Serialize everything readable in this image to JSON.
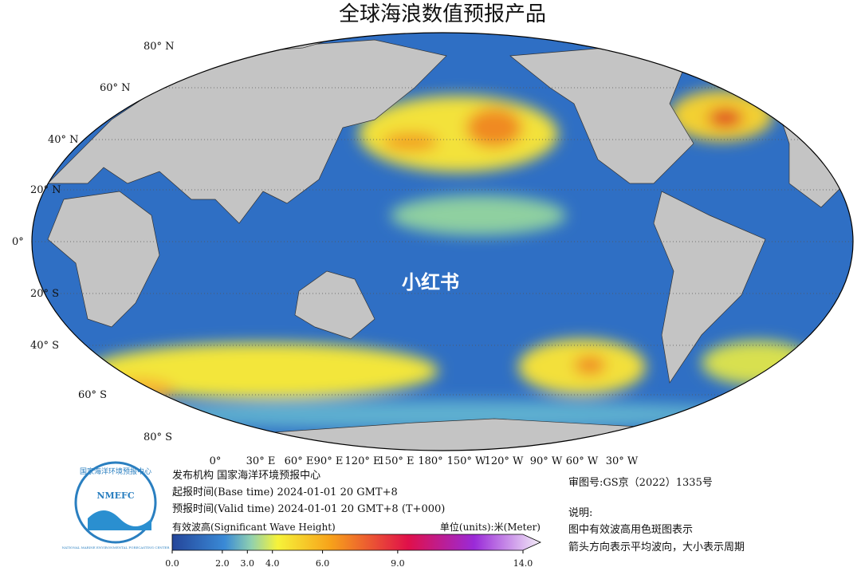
{
  "title": "全球海浪数值预报产品",
  "lat_labels": [
    "80° N",
    "60° N",
    "40° N",
    "20° N",
    "0°",
    "20° S",
    "40° S",
    "60° S",
    "80° S"
  ],
  "lon_labels": [
    "0°",
    "30° E",
    "60° E",
    "90° E",
    "120° E",
    "150° E",
    "180°",
    "150° W",
    "120° W",
    "90° W",
    "60° W",
    "30° W"
  ],
  "watermark": "小红书",
  "logo": {
    "cn": "国家海洋环境预报中心",
    "abbr": "NMEFC",
    "en": "NATIONAL MARINE ENVIRONMENTAL FORECASTING CENTER"
  },
  "info": {
    "agency": "发布机构 国家海洋环境预报中心",
    "base_time": "起报时间(Base time)  2024-01-01 20  GMT+8",
    "valid_time": "预报时间(Valid time) 2024-01-01 20  GMT+8 (T+000)",
    "approval": "审图号:GS京（2022）1335号",
    "notes_title": "说明:",
    "notes": [
      "图中有效波高用色斑图表示",
      "箭头方向表示平均波向，大小表示周期"
    ]
  },
  "colorbar": {
    "label": "有效波高(Significant Wave Height)",
    "units": "单位(units):米(Meter)",
    "range": [
      0,
      14
    ],
    "ticks": [
      {
        "value": 0,
        "label": "0.0"
      },
      {
        "value": 2,
        "label": "2.0"
      },
      {
        "value": 3,
        "label": "3.0"
      },
      {
        "value": 4,
        "label": "4.0"
      },
      {
        "value": 6,
        "label": "6.0"
      },
      {
        "value": 9,
        "label": "9.0"
      },
      {
        "value": 14,
        "label": "14.0"
      }
    ]
  }
}
